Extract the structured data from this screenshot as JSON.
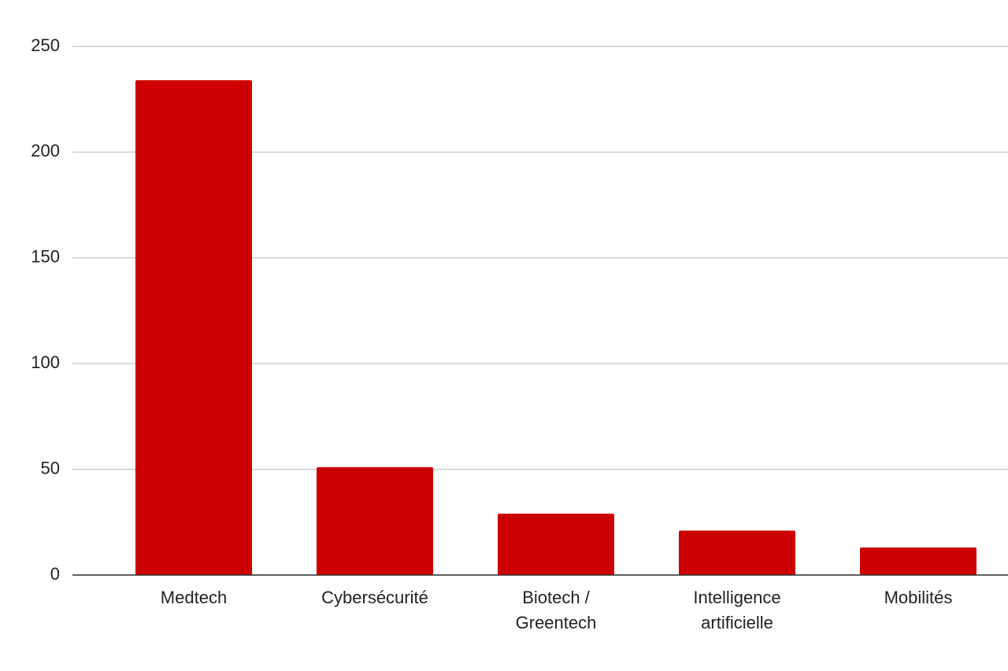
{
  "chart_data": {
    "type": "bar",
    "categories": [
      "Medtech",
      "Cybersécurité",
      "Biotech / Greentech",
      "Intelligence artificielle",
      "Mobilités"
    ],
    "values": [
      234,
      51,
      29,
      21,
      13
    ],
    "color": "#cc0000",
    "ylim": [
      0,
      250
    ],
    "yticks": [
      0,
      50,
      100,
      150,
      200,
      250
    ],
    "grid": true
  }
}
